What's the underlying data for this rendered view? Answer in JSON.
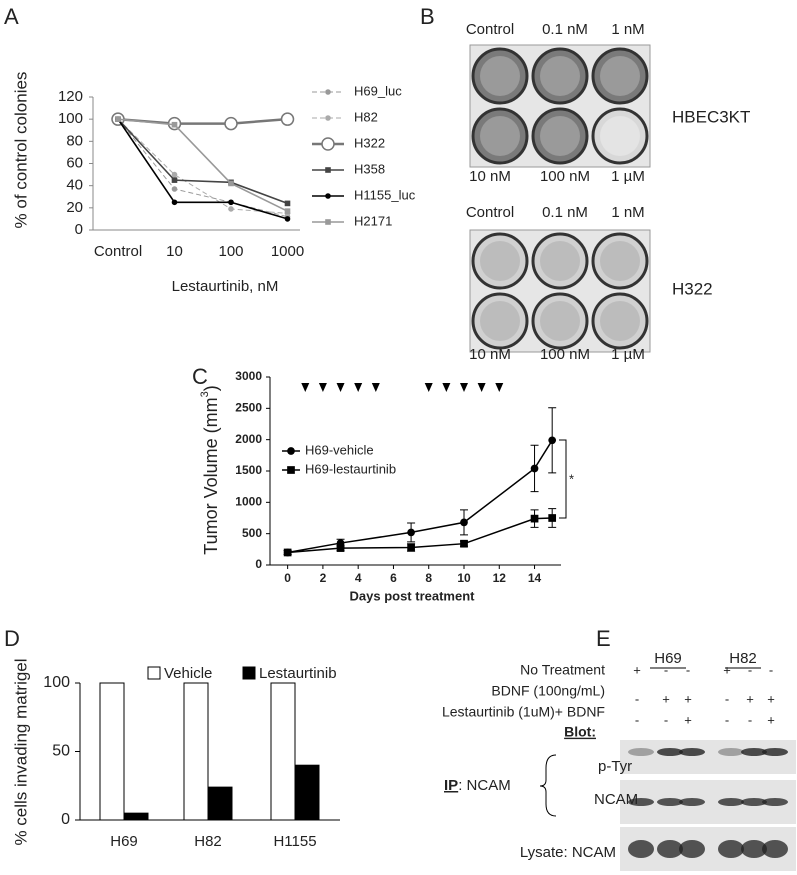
{
  "panel_labels": [
    "A",
    "B",
    "C",
    "D",
    "E"
  ],
  "chart_data": [
    {
      "type": "line",
      "ylabel": "% of control colonies",
      "xlabel": "Lestaurtinib, nM",
      "categories": [
        "Control",
        "10",
        "100",
        "1000"
      ],
      "ylim": [
        0,
        120
      ],
      "yticks": [
        0,
        20,
        40,
        60,
        80,
        100,
        120
      ],
      "series": [
        {
          "name": "H69_luc",
          "color": "#999999",
          "dashed": true,
          "marker": "circle",
          "values": [
            100,
            37,
            25,
            12
          ]
        },
        {
          "name": "H82",
          "color": "#aaaaaa",
          "dashed": true,
          "marker": "circle",
          "values": [
            100,
            50,
            19,
            15
          ]
        },
        {
          "name": "H322",
          "color": "#777777",
          "dashed": false,
          "marker": "open-circle",
          "values": [
            100,
            96,
            96,
            100
          ]
        },
        {
          "name": "H358",
          "color": "#444444",
          "dashed": false,
          "marker": "square",
          "values": [
            100,
            45,
            43,
            24
          ]
        },
        {
          "name": "H1155_luc",
          "color": "#000000",
          "dashed": false,
          "marker": "circle",
          "values": [
            100,
            25,
            25,
            10
          ]
        },
        {
          "name": "H2171",
          "color": "#999999",
          "dashed": false,
          "marker": "square",
          "values": [
            100,
            95,
            42,
            17
          ]
        }
      ]
    },
    {
      "type": "line-numeric",
      "ylabel": [
        "Tumor Volume (mm",
        "3",
        ")"
      ],
      "xlabel": "Days post treatment",
      "x": [
        0,
        3,
        7,
        10,
        14,
        15
      ],
      "xlim": [
        -1,
        15.5
      ],
      "xticks": [
        0,
        2,
        4,
        6,
        8,
        10,
        12,
        14
      ],
      "ylim": [
        0,
        3000
      ],
      "yticks": [
        0,
        500,
        1000,
        1500,
        2000,
        2500,
        3000
      ],
      "treatment_days": [
        1,
        2,
        3,
        4,
        5,
        8,
        9,
        10,
        11,
        12
      ],
      "annotation": "*",
      "series": [
        {
          "name": "H69-vehicle",
          "color": "#000000",
          "marker": "circle",
          "values": [
            200,
            350,
            520,
            680,
            1540,
            1990
          ],
          "errors": [
            30,
            60,
            150,
            200,
            370,
            520
          ]
        },
        {
          "name": "H69-lestaurtinib",
          "color": "#000000",
          "marker": "square",
          "values": [
            200,
            270,
            280,
            340,
            740,
            750
          ],
          "errors": [
            30,
            40,
            60,
            40,
            140,
            150
          ]
        }
      ]
    },
    {
      "type": "bar",
      "ylabel": "% cells invading matrigel",
      "categories": [
        "H69",
        "H82",
        "H1155"
      ],
      "ylim": [
        0,
        100
      ],
      "yticks": [
        0,
        50,
        100
      ],
      "series": [
        {
          "name": "Vehicle",
          "color": "#ffffff",
          "values": [
            100,
            100,
            100
          ]
        },
        {
          "name": "Lestaurtinib",
          "color": "#000000",
          "values": [
            5,
            24,
            40
          ]
        }
      ]
    }
  ],
  "plates": [
    {
      "top_labels": [
        "Control",
        "0.1 nM",
        "1 nM"
      ],
      "bottom_labels": [
        "10 nM",
        "100 nM",
        "1 µM"
      ],
      "cell_line": "HBEC3KT"
    },
    {
      "top_labels": [
        "Control",
        "0.1 nM",
        "1 nM"
      ],
      "bottom_labels": [
        "10 nM",
        "100 nM",
        "1 µM"
      ],
      "cell_line": "H322"
    }
  ],
  "blot": {
    "cell_lines": [
      "H69",
      "H82"
    ],
    "treatments": [
      {
        "label": "No Treatment",
        "marks": [
          "+",
          "-",
          "-",
          "+",
          "-",
          "-"
        ]
      },
      {
        "label": "BDNF (100ng/mL)",
        "marks": [
          "-",
          "+",
          "+",
          "-",
          "+",
          "+"
        ]
      },
      {
        "label": "Lestaurtinib (1uM)+ BDNF",
        "marks": [
          "-",
          "-",
          "+",
          "-",
          "-",
          "+"
        ]
      }
    ],
    "heading": "Blot:",
    "ip_prefix": "IP",
    "ip_target": ": NCAM",
    "blots": [
      "p-Tyr",
      "NCAM"
    ],
    "lysate": "Lysate: NCAM"
  }
}
